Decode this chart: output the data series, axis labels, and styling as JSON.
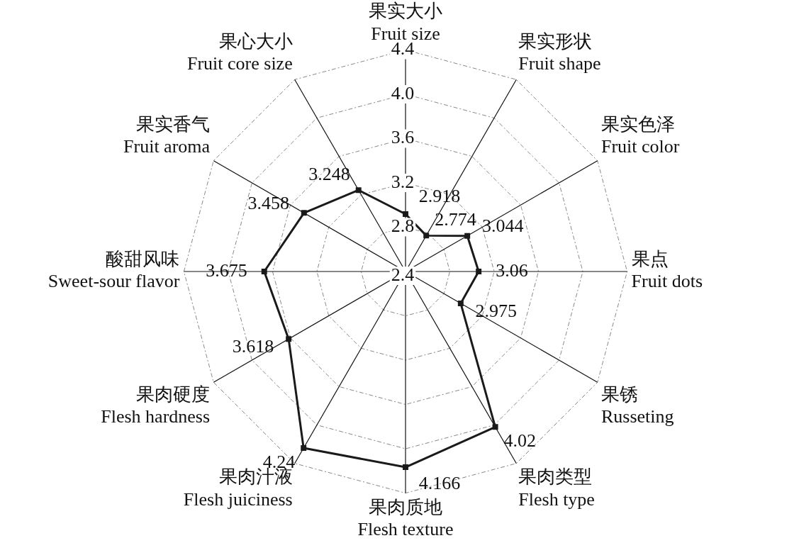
{
  "chart_data": {
    "type": "radar",
    "categories": [
      "果实大小\nFruit size",
      "果实形状\nFruit shape",
      "果实色泽\nFruit color",
      "果点\nFruit dots",
      "果锈\nRusseting",
      "果肉类型\nFlesh type",
      "果肉质地\nFlesh texture",
      "果肉汁液\nFlesh juiciness",
      "果肉硬度\nFlesh hardness",
      "酸甜风味\nSweet-sour flavor",
      "果实香气\nFruit aroma",
      "果心大小\nFruit core size"
    ],
    "series": [
      {
        "color": "#1a1a1a",
        "values": [
          2.918,
          2.774,
          3.044,
          3.06,
          2.975,
          4.02,
          4.166,
          4.24,
          3.618,
          3.675,
          3.458,
          3.248
        ]
      }
    ],
    "ylim": [
      2.4,
      4.4
    ],
    "yticks": [
      2.4,
      2.8,
      3.2,
      3.6,
      {
        "value": 4.0,
        "label": "4.0"
      },
      4.4
    ],
    "grid": true,
    "legend": false,
    "marker": "square",
    "line_style": "solid",
    "data_labels": true
  }
}
